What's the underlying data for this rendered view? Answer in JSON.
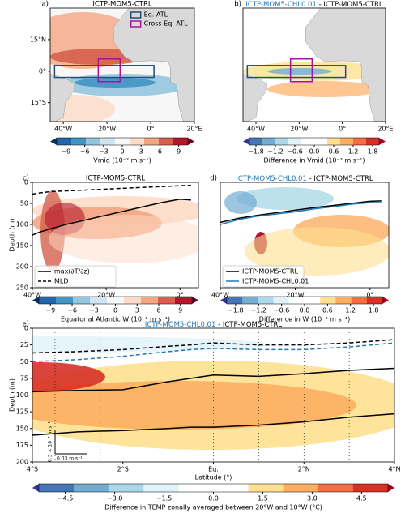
{
  "chart_data": [
    {
      "type": "map",
      "label": "a)",
      "title": "ICTP-MOM5-CTRL",
      "xlim": [
        -46,
        20
      ],
      "ylim": [
        -24,
        30
      ],
      "xticks": [
        {
          "value": -40,
          "label": "40°W"
        },
        {
          "value": -20,
          "label": "20°W"
        },
        {
          "value": 0,
          "label": "0°"
        },
        {
          "value": 20,
          "label": "20°E"
        }
      ],
      "yticks": [
        {
          "value": 15,
          "label": "15°N"
        },
        {
          "value": 0,
          "label": "0°"
        },
        {
          "value": -15,
          "label": "15°S"
        }
      ],
      "boxes": [
        {
          "name": "Eq. ATL",
          "color": "#1f4e79",
          "lon": [
            -44,
            1.5
          ],
          "lat": [
            -3,
            2.7
          ]
        },
        {
          "name": "Cross Eq. ATL",
          "color": "#a0179c",
          "lon": [
            -24,
            -14
          ],
          "lat": [
            -5,
            5.8
          ]
        }
      ],
      "colorbar": {
        "label": "Vmid (10⁻² m s⁻¹)",
        "lim": [
          -11.5,
          11.5
        ],
        "ticks": [
          {
            "value": -9,
            "label": "−9"
          },
          {
            "value": -6,
            "label": "−6"
          },
          {
            "value": -3,
            "label": "−3"
          },
          0,
          3,
          6,
          9
        ],
        "colors": [
          "#053061",
          "#2166ac",
          "#4393c3",
          "#92c5de",
          "#d1e5f0",
          "#f7f7f7",
          "#fddbc7",
          "#f4a582",
          "#d6604d",
          "#b2182b",
          "#67001f"
        ]
      }
    },
    {
      "type": "map",
      "label": "b)",
      "title": [
        "ICTP-MOM5-CHL0.01",
        " - ICTP-MOM5-CTRL"
      ],
      "title_colors": [
        "#1f77b4",
        "#000000"
      ],
      "xlim": [
        -46,
        20
      ],
      "ylim": [
        -24,
        30
      ],
      "xticks": [
        {
          "value": -40,
          "label": "40°W"
        },
        {
          "value": -20,
          "label": "20°W"
        },
        {
          "value": 0,
          "label": "0°"
        },
        {
          "value": 20,
          "label": "20°E"
        }
      ],
      "boxes": [
        {
          "color": "#1f4e79",
          "lon": [
            -44,
            1.5
          ],
          "lat": [
            -3,
            2.7
          ]
        },
        {
          "color": "#a0179c",
          "lon": [
            -24,
            -14
          ],
          "lat": [
            -5,
            5.8
          ]
        }
      ],
      "colorbar": {
        "label": "Difference in Vmid (10⁻² m s⁻¹)",
        "lim": [
          -2.2,
          2.2
        ],
        "ticks": [
          {
            "value": -1.8,
            "label": "−1.8"
          },
          {
            "value": -1.2,
            "label": "−1.2"
          },
          {
            "value": -0.6,
            "label": "−0.6"
          },
          {
            "value": 0,
            "label": "0.0"
          },
          0.6,
          1.2,
          1.8
        ],
        "colors": [
          "#313695",
          "#4575b4",
          "#74add1",
          "#abd9e9",
          "#e0f3f8",
          "#ffffff",
          "#ffffff",
          "#fee090",
          "#fdae61",
          "#f46d43",
          "#d73027",
          "#a50026"
        ]
      }
    },
    {
      "type": "line",
      "label": "c)",
      "title": "ICTP-MOM5-CTRL",
      "ylabel": "Depth (m)",
      "xlim": [
        -40,
        5
      ],
      "ylim": [
        0,
        250
      ],
      "y_inverted": true,
      "xticks": [
        {
          "value": -40,
          "label": "40°W"
        },
        {
          "value": -20,
          "label": "20°W"
        },
        {
          "value": 0,
          "label": "0°"
        }
      ],
      "yticks": [
        0,
        50,
        100,
        150,
        200,
        250
      ],
      "x": [
        -40,
        -38,
        -35,
        -30,
        -25,
        -20,
        -15,
        -10,
        -5,
        0,
        3
      ],
      "series": [
        {
          "name": "max(∂T/∂z)",
          "color": "#000000",
          "dash": false,
          "values": [
            125,
            118,
            110,
            98,
            88,
            78,
            68,
            58,
            48,
            40,
            42
          ]
        },
        {
          "name": "MLD",
          "color": "#000000",
          "dash": true,
          "values": [
            28,
            25,
            22,
            20,
            18,
            16,
            14,
            12,
            10,
            8,
            7
          ]
        }
      ],
      "legend": "lower left",
      "colorbar": {
        "label": "Equatorial Atlantic W (10⁻⁶ m s⁻¹)",
        "lim": [
          -11.5,
          11.5
        ],
        "ticks": [
          {
            "value": -9,
            "label": "−9"
          },
          {
            "value": -6,
            "label": "−6"
          },
          {
            "value": -3,
            "label": "−3"
          },
          0,
          3,
          6,
          9
        ],
        "colors": [
          "#053061",
          "#2166ac",
          "#4393c3",
          "#92c5de",
          "#d1e5f0",
          "#f7f7f7",
          "#fddbc7",
          "#f4a582",
          "#d6604d",
          "#b2182b",
          "#67001f"
        ]
      }
    },
    {
      "type": "line",
      "label": "d)",
      "title": [
        "ICTP-MOM5-CHL0.01",
        " - ICTP-MOM5-CTRL"
      ],
      "title_colors": [
        "#1f77b4",
        "#000000"
      ],
      "xlim": [
        -40,
        5
      ],
      "ylim": [
        0,
        250
      ],
      "y_inverted": true,
      "xticks": [
        {
          "value": -40,
          "label": "40°W"
        },
        {
          "value": -20,
          "label": "20°W"
        },
        {
          "value": 0,
          "label": "0°"
        }
      ],
      "x": [
        -40,
        -35,
        -30,
        -25,
        -20,
        -15,
        -10,
        -5,
        0,
        3
      ],
      "series": [
        {
          "name": "ICTP-MOM5-CTRL",
          "color": "#000000",
          "dash": false,
          "values": [
            95,
            85,
            78,
            72,
            66,
            60,
            55,
            50,
            45,
            44
          ]
        },
        {
          "name": "ICTP-MOM5-CHL0.01",
          "color": "#1f77b4",
          "dash": false,
          "values": [
            100,
            88,
            80,
            75,
            70,
            63,
            58,
            52,
            48,
            48
          ]
        }
      ],
      "legend": "lower left",
      "colorbar": {
        "label": "Difference in W (10⁻⁶ m s⁻¹)",
        "lim": [
          -2.2,
          2.2
        ],
        "ticks": [
          {
            "value": -1.8,
            "label": "−1.8"
          },
          {
            "value": -1.2,
            "label": "−1.2"
          },
          {
            "value": -0.6,
            "label": "−0.6"
          },
          {
            "value": 0,
            "label": "0.0"
          },
          0.6,
          1.2,
          1.8
        ],
        "colors": [
          "#313695",
          "#4575b4",
          "#74add1",
          "#abd9e9",
          "#e0f3f8",
          "#ffffff",
          "#ffffff",
          "#fee090",
          "#fdae61",
          "#f46d43",
          "#d73027",
          "#a50026"
        ]
      }
    },
    {
      "type": "line",
      "label": "e)",
      "title": [
        "ICTP-MOM5-CHL0.01",
        "   -   ICTP-MOM5-CTRL"
      ],
      "title_colors": [
        "#1f77b4",
        "#000000"
      ],
      "ylabel": "Depth (m)",
      "xlabel": "Latitude (°)",
      "xlim": [
        -4,
        4
      ],
      "ylim": [
        0,
        200
      ],
      "y_inverted": true,
      "xticks": [
        {
          "value": -4,
          "label": "4°S"
        },
        {
          "value": -2,
          "label": "2°S"
        },
        {
          "value": 0,
          "label": "Eq."
        },
        {
          "value": 2,
          "label": "2°N"
        },
        {
          "value": 4,
          "label": "4°N"
        }
      ],
      "yticks": [
        0,
        25,
        50,
        75,
        100,
        125,
        150,
        175,
        200
      ],
      "x": [
        -4,
        -3,
        -2,
        -1,
        -0.5,
        0,
        1,
        2,
        3,
        4
      ],
      "series": [
        {
          "color": "#000000",
          "dash": true,
          "values": [
            37,
            35,
            32,
            27,
            25,
            22,
            25,
            25,
            22,
            17
          ]
        },
        {
          "color": "#1f77b4",
          "dash": true,
          "values": [
            50,
            47,
            42,
            35,
            32,
            30,
            32,
            32,
            28,
            22
          ]
        },
        {
          "color": "#000000",
          "dash": false,
          "values": [
            95,
            93,
            92,
            80,
            75,
            70,
            72,
            68,
            63,
            60
          ]
        },
        {
          "color": "#000000",
          "dash": false,
          "values": [
            160,
            155,
            153,
            150,
            148,
            148,
            145,
            140,
            133,
            128
          ]
        }
      ],
      "annotations": [
        "0.3 × 10⁻⁴ m s⁻¹",
        "0.03 m s⁻¹"
      ],
      "colorbar": {
        "label": "Difference in TEMP zonally averaged between 20°W and 10°W (°C)",
        "lim": [
          -5.5,
          5.5
        ],
        "ticks": [
          {
            "value": -4.5,
            "label": "−4.5"
          },
          {
            "value": -3,
            "label": "−3.0"
          },
          {
            "value": -1.5,
            "label": "−1.5"
          },
          {
            "value": 0,
            "label": "0.0"
          },
          1.5,
          {
            "value": 3,
            "label": "3.0"
          },
          4.5
        ],
        "colors": [
          "#313695",
          "#4575b4",
          "#74add1",
          "#abd9e9",
          "#e0f3f8",
          "#ffffff",
          "#ffffff",
          "#fee090",
          "#fdae61",
          "#f46d43",
          "#d73027",
          "#a50026"
        ]
      }
    }
  ]
}
